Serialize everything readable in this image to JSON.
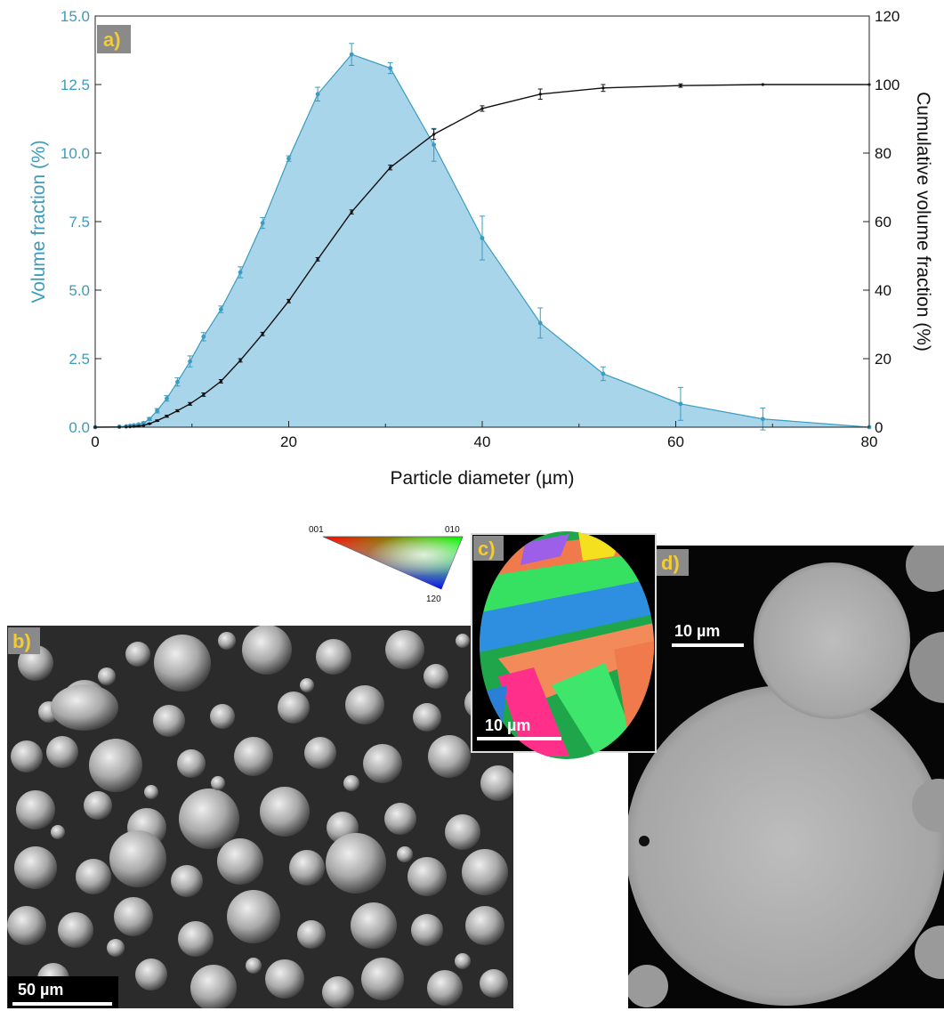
{
  "chart_data": {
    "type": "area",
    "xlabel": "Particle diameter (µm)",
    "ylabel_left": "Volume fraction (%)",
    "ylabel_right": "Cumulative volume fraction (%)",
    "xlim": [
      0,
      80
    ],
    "ylim_left": [
      0,
      15
    ],
    "ylim_right": [
      0,
      120
    ],
    "x_ticks": [
      "0",
      "20",
      "40",
      "60",
      "80"
    ],
    "y_ticks_left": [
      "0.0",
      "2.5",
      "5.0",
      "7.5",
      "10.0",
      "12.5",
      "15.0"
    ],
    "y_ticks_right": [
      "0",
      "20",
      "40",
      "60",
      "80",
      "100",
      "120"
    ],
    "grid": false,
    "series": [
      {
        "axis": "left",
        "render": "filled-area-with-error-bars",
        "color": "#a8d5ea",
        "line_color": "#3a9cc0",
        "x": [
          0,
          2.5,
          3.2,
          3.6,
          4.0,
          4.5,
          5.0,
          5.6,
          6.4,
          7.4,
          8.5,
          9.8,
          11.2,
          13.0,
          15.0,
          17.3,
          20.0,
          23.0,
          26.5,
          30.5,
          35.0,
          40.0,
          46.0,
          52.5,
          60.5,
          69.0,
          80.0
        ],
        "y": [
          0.0,
          0.02,
          0.03,
          0.05,
          0.07,
          0.1,
          0.15,
          0.3,
          0.6,
          1.05,
          1.65,
          2.4,
          3.3,
          4.3,
          5.65,
          7.45,
          9.8,
          12.15,
          13.6,
          13.1,
          10.3,
          6.9,
          3.8,
          1.95,
          0.85,
          0.3,
          0.0
        ],
        "err": [
          0,
          0,
          0.02,
          0.02,
          0.02,
          0.03,
          0.04,
          0.05,
          0.08,
          0.1,
          0.15,
          0.2,
          0.15,
          0.12,
          0.2,
          0.2,
          0.1,
          0.25,
          0.4,
          0.2,
          0.6,
          0.8,
          0.55,
          0.25,
          0.6,
          0.4,
          0
        ]
      },
      {
        "axis": "right",
        "render": "line-with-error-bars",
        "color": "#111111",
        "x": [
          0,
          2.5,
          3.2,
          3.6,
          4.0,
          4.5,
          5.0,
          5.6,
          6.4,
          7.4,
          8.5,
          9.8,
          11.2,
          13.0,
          15.0,
          17.3,
          20.0,
          23.0,
          26.5,
          30.5,
          35.0,
          40.0,
          46.0,
          52.5,
          60.5,
          69.0,
          80.0
        ],
        "y": [
          0,
          0.02,
          0.05,
          0.1,
          0.2,
          0.3,
          0.5,
          1.0,
          1.9,
          3.2,
          4.8,
          6.8,
          9.5,
          13.4,
          19.5,
          27.2,
          36.8,
          49.0,
          62.8,
          75.8,
          85.5,
          93.0,
          97.2,
          99.0,
          99.7,
          100.0,
          100.0
        ],
        "err": [
          0,
          0,
          0,
          0,
          0,
          0,
          0,
          0.1,
          0.2,
          0.3,
          0.3,
          0.4,
          0.5,
          0.5,
          0.5,
          0.5,
          0.5,
          0.5,
          0.6,
          0.7,
          1.5,
          0.8,
          1.5,
          1.0,
          0.5,
          0,
          0
        ]
      }
    ]
  },
  "panels": {
    "a_label": "a)",
    "b_label": "b)",
    "c_label": "c)",
    "d_label": "d)",
    "b_scalebar": "50 µm",
    "c_scalebar": "10 µm",
    "d_scalebar": "10 µm",
    "legend_001": "001",
    "legend_010": "010",
    "legend_120": "120"
  },
  "colors": {
    "left_axis": "#3a9cc0",
    "area_fill": "#a8d5ea",
    "panel_label": "#f3cc33",
    "label_box": "#8a8a8a"
  }
}
